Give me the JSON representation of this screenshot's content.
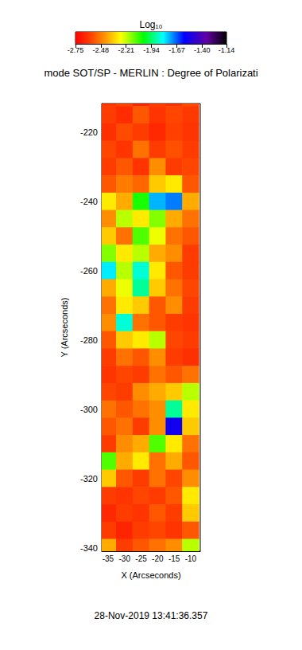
{
  "chart_data": {
    "type": "heatmap",
    "title": "mode SOT/SP - MERLIN : Degree of Polarizati",
    "x_label": "X (Arcseconds)",
    "y_label": "Y (Arcseconds)",
    "annotation": "28-Nov-2019 13:41:36.357",
    "xlim": [
      -36.9,
      -7.1
    ],
    "ylim": [
      -341,
      -211.7
    ],
    "xticks": [
      -35,
      -30,
      -25,
      -20,
      -15,
      -10
    ],
    "yticks": [
      -340,
      -320,
      -300,
      -280,
      -260,
      -240,
      -220
    ],
    "cells": {
      "x": [
        -35,
        -30,
        -25,
        -20,
        -15,
        -10
      ],
      "y": [
        -210,
        -215,
        -220,
        -225,
        -230,
        -235,
        -240,
        -245,
        -250,
        -255,
        -260,
        -265,
        -270,
        -275,
        -280,
        -285,
        -290,
        -295,
        -300,
        -305,
        -310,
        -315,
        -320,
        -325,
        -330,
        -335,
        -340
      ],
      "values": [
        [
          -2.62,
          -2.58,
          -2.66,
          -2.6,
          -2.63,
          -2.57
        ],
        [
          -2.6,
          -2.64,
          -2.55,
          -2.62,
          -2.58,
          -2.61
        ],
        [
          -2.63,
          -2.57,
          -2.6,
          -2.65,
          -2.59,
          -2.62
        ],
        [
          -2.58,
          -2.62,
          -2.5,
          -2.6,
          -2.56,
          -2.6
        ],
        [
          -2.6,
          -2.55,
          -2.62,
          -2.45,
          -2.6,
          -2.58
        ],
        [
          -2.55,
          -2.48,
          -2.52,
          -2.35,
          -2.3,
          -2.55
        ],
        [
          -2.3,
          -2.4,
          -2.05,
          -1.75,
          -1.7,
          -2.4
        ],
        [
          -2.45,
          -2.2,
          -2.3,
          -2.15,
          -2.4,
          -2.5
        ],
        [
          -2.35,
          -2.5,
          -2.1,
          -2.25,
          -2.5,
          -2.55
        ],
        [
          -2.15,
          -2.3,
          -2.2,
          -2.4,
          -2.45,
          -2.6
        ],
        [
          -1.8,
          -2.2,
          -1.85,
          -2.3,
          -2.55,
          -2.6
        ],
        [
          -2.4,
          -2.25,
          -1.9,
          -2.35,
          -2.5,
          -2.58
        ],
        [
          -2.5,
          -2.3,
          -2.35,
          -2.55,
          -2.45,
          -2.6
        ],
        [
          -2.45,
          -1.85,
          -2.5,
          -2.55,
          -2.6,
          -2.62
        ],
        [
          -2.55,
          -2.35,
          -2.3,
          -2.2,
          -2.58,
          -2.6
        ],
        [
          -2.6,
          -2.5,
          -2.55,
          -2.45,
          -2.6,
          -2.63
        ],
        [
          -2.62,
          -2.58,
          -2.6,
          -2.5,
          -2.55,
          -2.5
        ],
        [
          -2.58,
          -2.6,
          -2.45,
          -2.4,
          -2.35,
          -2.2
        ],
        [
          -2.5,
          -2.55,
          -2.5,
          -2.45,
          -1.9,
          -2.3
        ],
        [
          -2.55,
          -2.5,
          -2.6,
          -2.45,
          -1.55,
          -2.35
        ],
        [
          -2.6,
          -2.45,
          -2.4,
          -2.1,
          -2.3,
          -2.5
        ],
        [
          -2.1,
          -2.4,
          -2.3,
          -2.5,
          -2.4,
          -2.55
        ],
        [
          -2.35,
          -2.55,
          -2.6,
          -2.5,
          -2.58,
          -2.45
        ],
        [
          -2.6,
          -2.62,
          -2.58,
          -2.6,
          -2.55,
          -2.3
        ],
        [
          -2.65,
          -2.6,
          -2.62,
          -2.55,
          -2.6,
          -2.35
        ],
        [
          -2.6,
          -2.66,
          -2.6,
          -2.58,
          -2.62,
          -2.55
        ],
        [
          -2.4,
          -2.6,
          -2.55,
          -2.5,
          -2.45,
          -2.2
        ]
      ]
    },
    "colorbar": {
      "label": "Log₁₀",
      "range": [
        -2.75,
        -1.14
      ],
      "ticks": [
        -2.75,
        -2.48,
        -2.21,
        -1.94,
        -1.67,
        {
          "value": -1.4,
          "label": "-1.40"
        },
        -1.14
      ]
    }
  }
}
